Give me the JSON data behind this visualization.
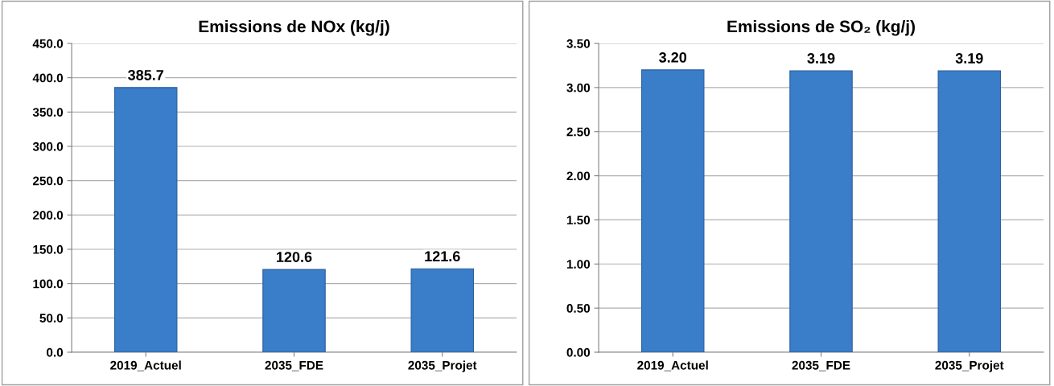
{
  "chart_data": [
    {
      "type": "bar",
      "title": "Emissions de NOx (kg/j)",
      "categories": [
        "2019_Actuel",
        "2035_FDE",
        "2035_Projet"
      ],
      "values": [
        385.7,
        120.6,
        121.6
      ],
      "color": "#3a7dc9",
      "ylim": [
        0,
        450
      ],
      "yticks": [
        {
          "value": 0,
          "label": "0.0"
        },
        {
          "value": 50,
          "label": "50.0"
        },
        {
          "value": 100,
          "label": "100.0"
        },
        {
          "value": 150,
          "label": "150.0"
        },
        {
          "value": 200,
          "label": "200.0"
        },
        {
          "value": 250,
          "label": "250.0"
        },
        {
          "value": 300,
          "label": "300.0"
        },
        {
          "value": 350,
          "label": "350.0"
        },
        {
          "value": 400,
          "label": "400.0"
        },
        {
          "value": 450,
          "label": "450.0"
        }
      ],
      "grid": "y",
      "data_labels": true
    },
    {
      "type": "bar",
      "title": "Emissions de SO₂ (kg/j)",
      "categories": [
        "2019_Actuel",
        "2035_FDE",
        "2035_Projet"
      ],
      "values": [
        3.2,
        3.19,
        3.19
      ],
      "value_labels": [
        "3.20",
        "3.19",
        "3.19"
      ],
      "color": "#3a7dc9",
      "ylim": [
        0,
        3.5
      ],
      "yticks": [
        {
          "value": 0,
          "label": "0.00"
        },
        {
          "value": 0.5,
          "label": "0.50"
        },
        {
          "value": 1,
          "label": "1.00"
        },
        {
          "value": 1.5,
          "label": "1.50"
        },
        {
          "value": 2,
          "label": "2.00"
        },
        {
          "value": 2.5,
          "label": "2.50"
        },
        {
          "value": 3,
          "label": "3.00"
        },
        {
          "value": 3.5,
          "label": "3.50"
        }
      ],
      "grid": "y"
    }
  ]
}
